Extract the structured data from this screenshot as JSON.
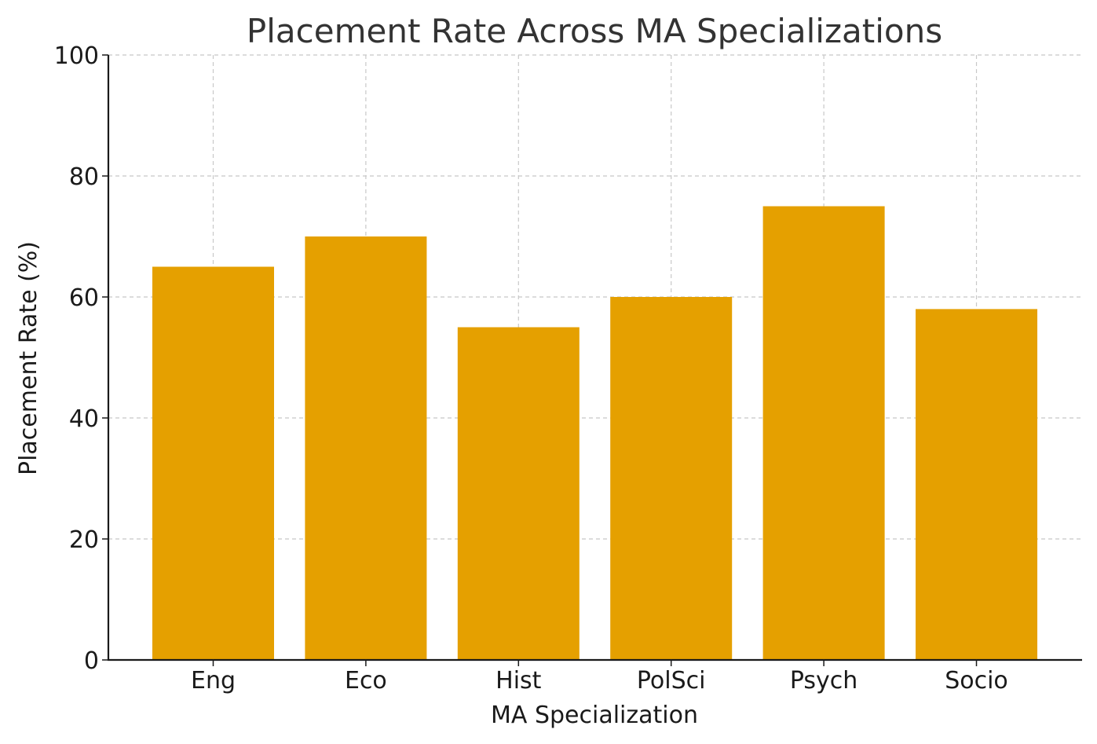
{
  "chart_data": {
    "type": "bar",
    "title": "Placement Rate Across MA Specializations",
    "xlabel": "MA Specialization",
    "ylabel": "Placement Rate (%)",
    "categories": [
      "Eng",
      "Eco",
      "Hist",
      "PolSci",
      "Psych",
      "Socio"
    ],
    "values": [
      65,
      70,
      55,
      60,
      75,
      58
    ],
    "ylim": [
      0,
      100
    ],
    "yticks": [
      0,
      20,
      40,
      60,
      80,
      100
    ],
    "bar_color": "#E5A000",
    "grid": true,
    "legend": "none"
  }
}
